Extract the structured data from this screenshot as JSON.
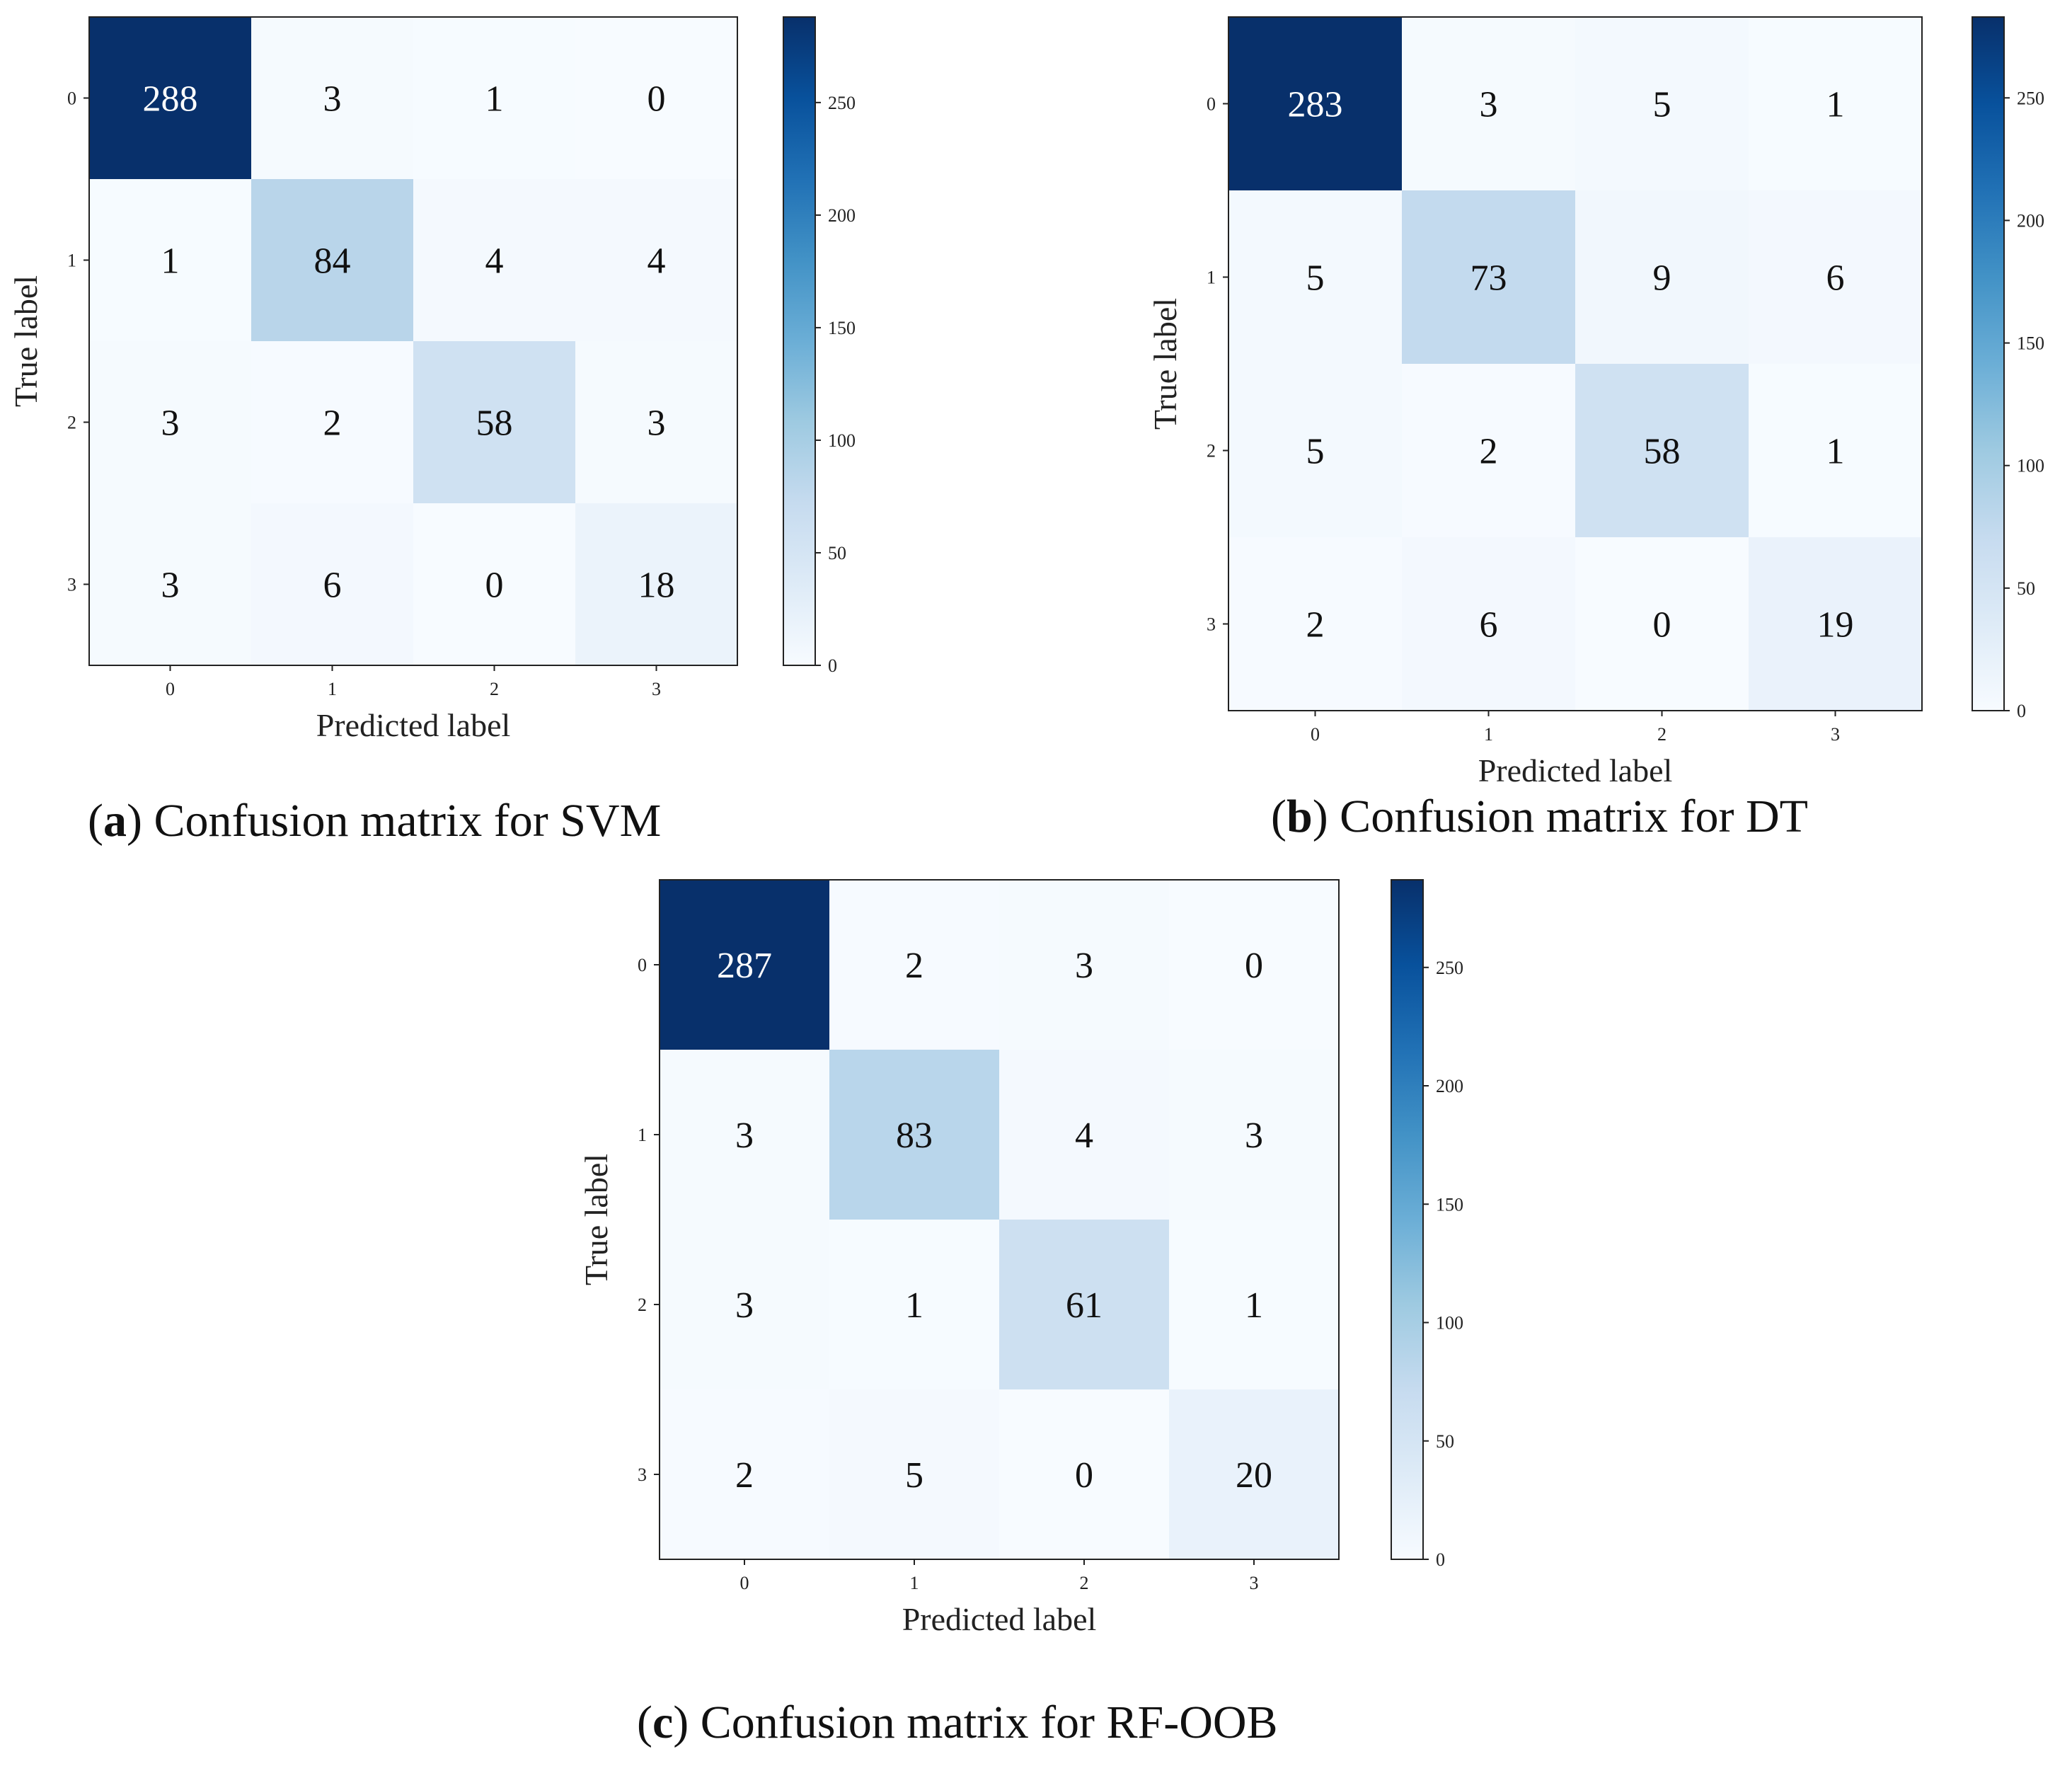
{
  "chart_data": [
    {
      "type": "heatmap",
      "id": "a",
      "caption_letter": "a",
      "caption_text": "Confusion matrix for SVM",
      "xlabel": "Predicted label",
      "ylabel": "True label",
      "x_ticks": [
        "0",
        "1",
        "2",
        "3"
      ],
      "y_ticks": [
        "0",
        "1",
        "2",
        "3"
      ],
      "values": [
        [
          288,
          3,
          1,
          0
        ],
        [
          1,
          84,
          4,
          4
        ],
        [
          3,
          2,
          58,
          3
        ],
        [
          3,
          6,
          0,
          18
        ]
      ],
      "colorbar": {
        "min": 0,
        "max": 288,
        "ticks": [
          0,
          50,
          100,
          150,
          200,
          250
        ]
      },
      "colormap": "Blues"
    },
    {
      "type": "heatmap",
      "id": "b",
      "caption_letter": "b",
      "caption_text": "Confusion matrix for DT",
      "xlabel": "Predicted label",
      "ylabel": "True label",
      "x_ticks": [
        "0",
        "1",
        "2",
        "3"
      ],
      "y_ticks": [
        "0",
        "1",
        "2",
        "3"
      ],
      "values": [
        [
          283,
          3,
          5,
          1
        ],
        [
          5,
          73,
          9,
          6
        ],
        [
          5,
          2,
          58,
          1
        ],
        [
          2,
          6,
          0,
          19
        ]
      ],
      "colorbar": {
        "min": 0,
        "max": 283,
        "ticks": [
          0,
          50,
          100,
          150,
          200,
          250
        ]
      },
      "colormap": "Blues"
    },
    {
      "type": "heatmap",
      "id": "c",
      "caption_letter": "c",
      "caption_text": "Confusion matrix for RF-OOB",
      "xlabel": "Predicted label",
      "ylabel": "True label",
      "x_ticks": [
        "0",
        "1",
        "2",
        "3"
      ],
      "y_ticks": [
        "0",
        "1",
        "2",
        "3"
      ],
      "values": [
        [
          287,
          2,
          3,
          0
        ],
        [
          3,
          83,
          4,
          3
        ],
        [
          3,
          1,
          61,
          1
        ],
        [
          2,
          5,
          0,
          20
        ]
      ],
      "colorbar": {
        "min": 0,
        "max": 287,
        "ticks": [
          0,
          50,
          100,
          150,
          200,
          250
        ]
      },
      "colormap": "Blues"
    }
  ],
  "colors": {
    "blues_low": "#f7fbff",
    "blues_high": "#08306b",
    "text_dark": "#111111",
    "text_light": "#ffffff"
  }
}
